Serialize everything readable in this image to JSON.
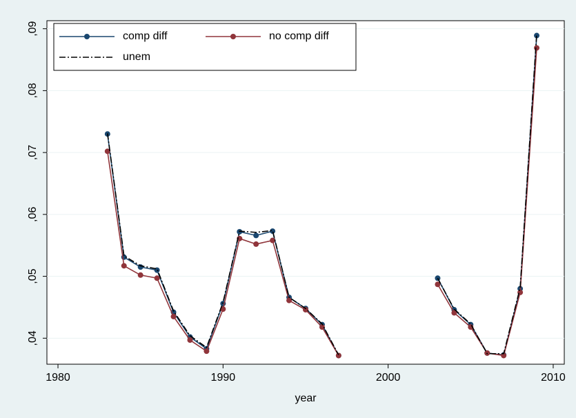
{
  "chart_data": {
    "type": "line",
    "xlabel": "year",
    "x": [
      1983,
      1984,
      1985,
      1986,
      1987,
      1988,
      1989,
      1990,
      1991,
      1992,
      1993,
      1994,
      1995,
      1996,
      1997,
      1998,
      1999,
      2000,
      2001,
      2002,
      2003,
      2004,
      2005,
      2006,
      2007,
      2008,
      2009
    ],
    "series": [
      {
        "name": "comp diff",
        "color": "#1a476f",
        "marker": true,
        "dash": "solid",
        "values": [
          0.073,
          0.0531,
          0.0515,
          0.051,
          0.0442,
          0.0402,
          0.0383,
          0.0456,
          0.0572,
          0.0566,
          0.0573,
          0.0466,
          0.0448,
          0.0422,
          0.0372,
          null,
          null,
          null,
          null,
          null,
          0.0497,
          0.0446,
          0.0422,
          0.0376,
          0.0373,
          0.048,
          0.0889
        ]
      },
      {
        "name": "no comp diff",
        "color": "#90353b",
        "marker": true,
        "dash": "solid",
        "values": [
          0.0702,
          0.0517,
          0.0502,
          0.0497,
          0.0435,
          0.0397,
          0.0379,
          0.0447,
          0.0561,
          0.0552,
          0.0558,
          0.0461,
          0.0446,
          0.0418,
          0.0372,
          null,
          null,
          null,
          null,
          null,
          0.0487,
          0.0441,
          0.0418,
          0.0376,
          0.0372,
          0.0474,
          0.0869
        ]
      },
      {
        "name": "unem",
        "color": "#000000",
        "marker": false,
        "dash": "dashdot",
        "values": [
          0.0731,
          0.0533,
          0.0517,
          0.0512,
          0.0444,
          0.0404,
          0.0385,
          0.0458,
          0.0573,
          0.0571,
          0.0574,
          0.0466,
          0.0448,
          0.0423,
          0.0373,
          null,
          null,
          null,
          null,
          null,
          0.0497,
          0.0447,
          0.0423,
          0.0375,
          0.0375,
          0.0482,
          0.0892
        ]
      }
    ],
    "xlim": [
      1979.33,
      2010.67
    ],
    "xticks": [
      1980,
      1990,
      2000,
      2010
    ],
    "ylim": [
      0.0358,
      0.0913
    ],
    "yticks": [
      {
        "value": 0.04,
        "label": ",04"
      },
      {
        "value": 0.05,
        "label": ",05"
      },
      {
        "value": 0.06,
        "label": ",06"
      },
      {
        "value": 0.07,
        "label": ",07"
      },
      {
        "value": 0.08,
        "label": ",08"
      },
      {
        "value": 0.09,
        "label": ",09"
      }
    ],
    "grid": true,
    "legend": "top-left"
  }
}
